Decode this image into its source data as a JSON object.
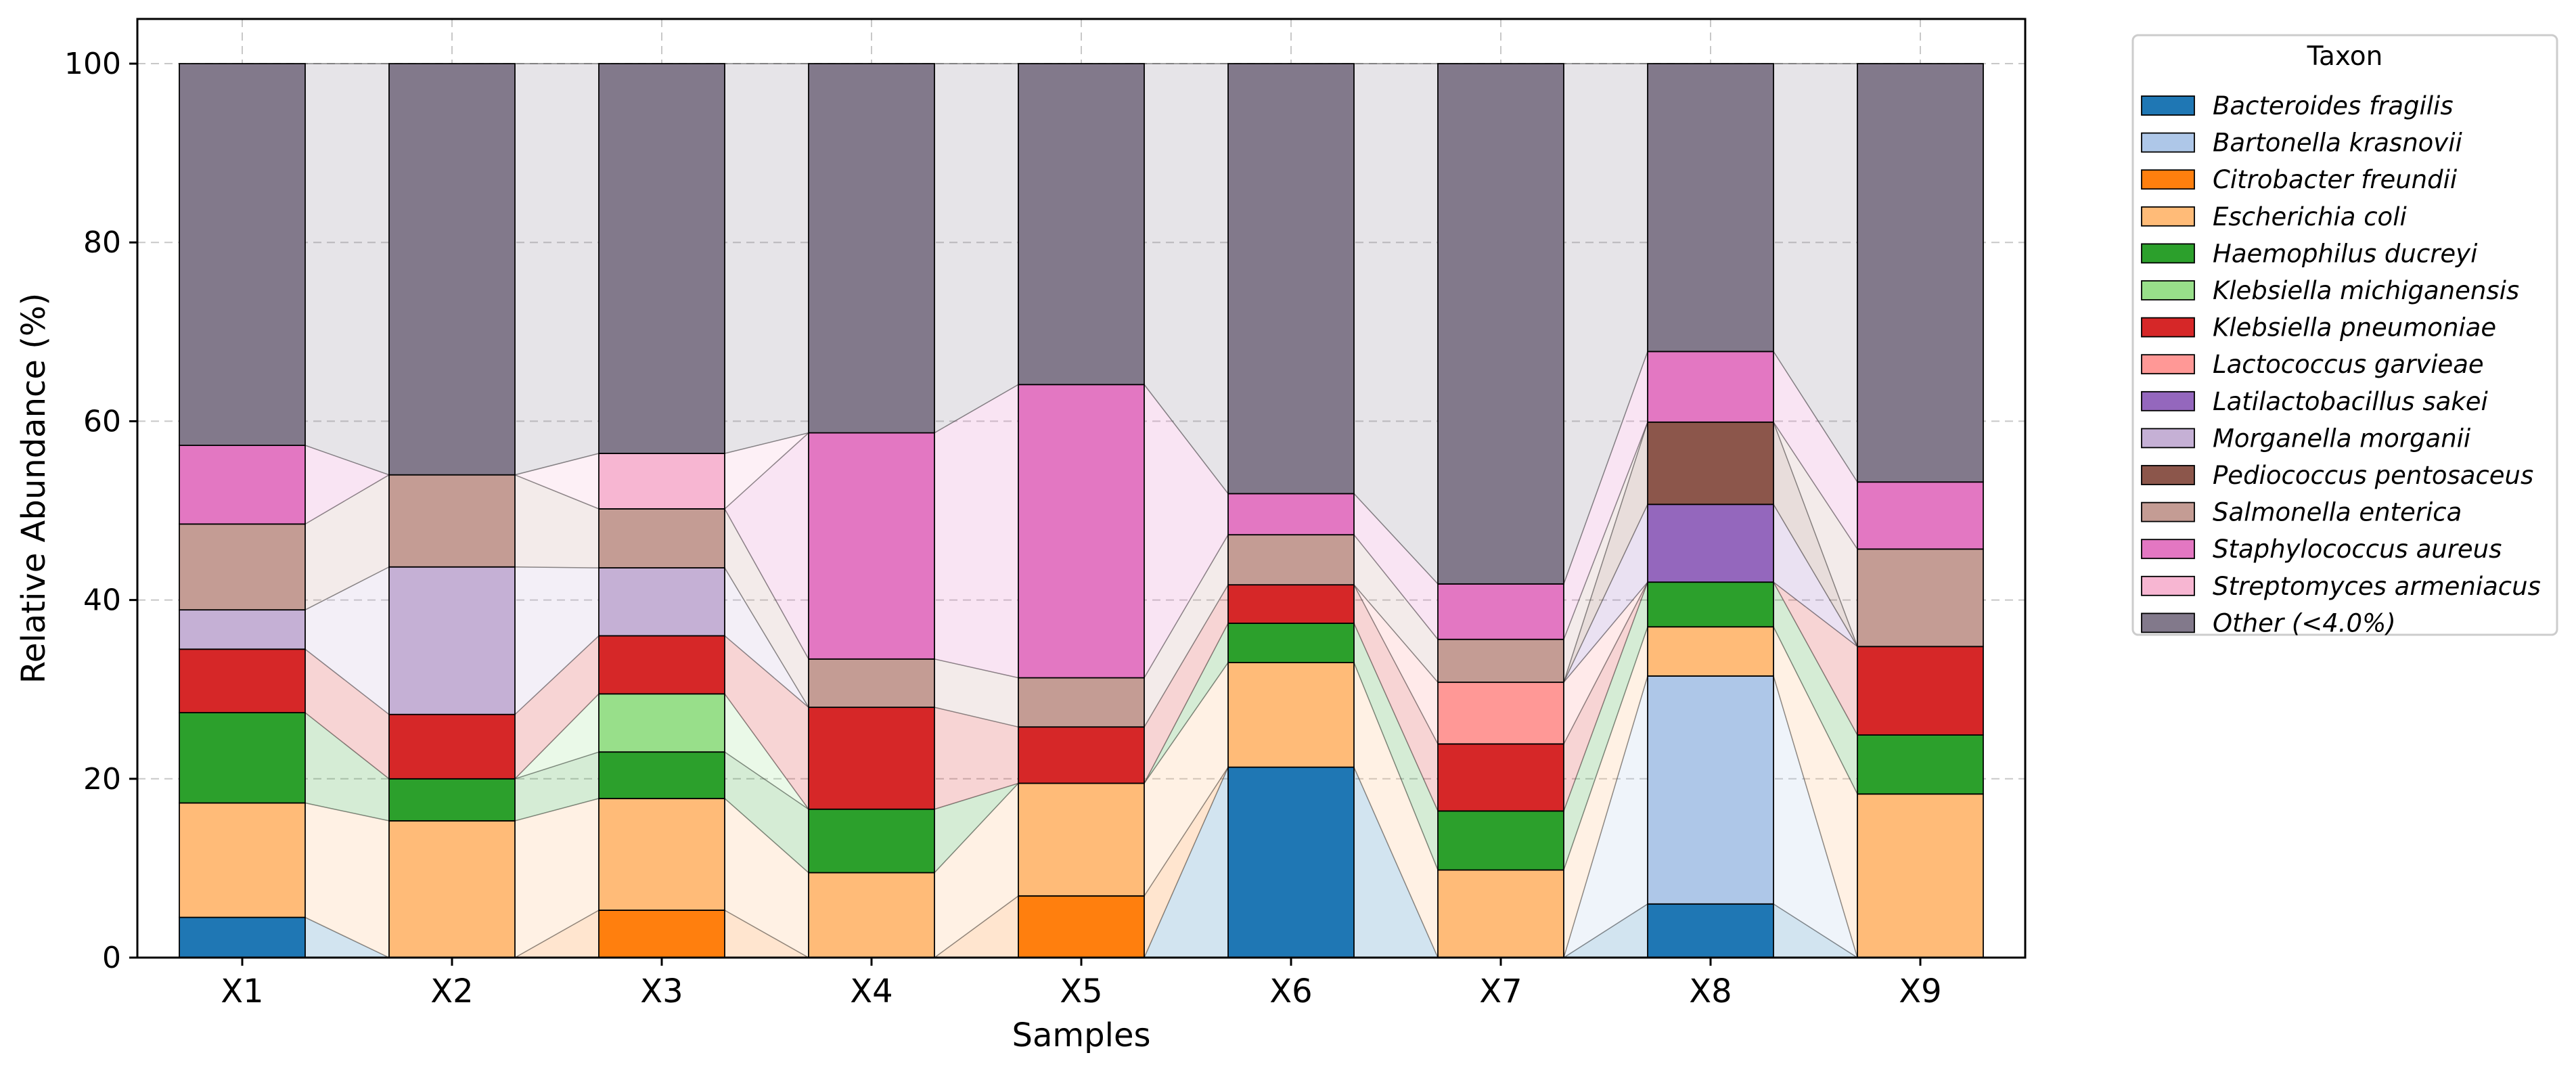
{
  "chart_data": {
    "type": "bar",
    "stacked": true,
    "xlabel": "Samples",
    "ylabel": "Relative Abundance (%)",
    "ylim": [
      0,
      105
    ],
    "yticks": [
      0,
      20,
      40,
      60,
      80,
      100
    ],
    "grid": true,
    "legend_title": "Taxon",
    "legend_position": "outside-right",
    "categories": [
      "X1",
      "X2",
      "X3",
      "X4",
      "X5",
      "X6",
      "X7",
      "X8",
      "X9"
    ],
    "series": [
      {
        "name": "Bacteroides fragilis",
        "color": "#1f77b4",
        "values": [
          4.5,
          0,
          0,
          0,
          0,
          21.3,
          0,
          6.0,
          0
        ]
      },
      {
        "name": "Bartonella krasnovii",
        "color": "#aec7e8",
        "values": [
          0,
          0,
          0,
          0,
          0,
          0,
          0,
          25.5,
          0
        ]
      },
      {
        "name": "Citrobacter freundii",
        "color": "#ff7f0e",
        "values": [
          0,
          0,
          5.3,
          0,
          6.9,
          0,
          0,
          0,
          0
        ]
      },
      {
        "name": "Escherichia coli",
        "color": "#ffbb78",
        "values": [
          12.8,
          15.3,
          12.5,
          9.5,
          12.6,
          11.7,
          9.8,
          5.5,
          18.3
        ]
      },
      {
        "name": "Haemophilus ducreyi",
        "color": "#2ca02c",
        "values": [
          10.1,
          4.7,
          5.2,
          7.1,
          0,
          4.4,
          6.6,
          5.0,
          6.6
        ]
      },
      {
        "name": "Klebsiella michiganensis",
        "color": "#98df8a",
        "values": [
          0,
          0,
          6.5,
          0,
          0,
          0,
          0,
          0,
          0
        ]
      },
      {
        "name": "Klebsiella pneumoniae",
        "color": "#d62728",
        "values": [
          7.1,
          7.2,
          6.5,
          11.4,
          6.3,
          4.3,
          7.5,
          0,
          9.9
        ]
      },
      {
        "name": "Lactococcus garvieae",
        "color": "#ff9896",
        "values": [
          0,
          0,
          0,
          0,
          0,
          0,
          6.9,
          0,
          0
        ]
      },
      {
        "name": "Latilactobacillus sakei",
        "color": "#9467bd",
        "values": [
          0,
          0,
          0,
          0,
          0,
          0,
          0,
          8.7,
          0
        ]
      },
      {
        "name": "Morganella morganii",
        "color": "#c5b0d5",
        "values": [
          4.4,
          16.5,
          7.6,
          0,
          0,
          0,
          0,
          0,
          0
        ]
      },
      {
        "name": "Pediococcus pentosaceus",
        "color": "#8c564b",
        "values": [
          0,
          0,
          0,
          0,
          0,
          0,
          0,
          9.2,
          0
        ]
      },
      {
        "name": "Salmonella enterica",
        "color": "#c49c94",
        "values": [
          9.6,
          10.3,
          6.6,
          5.4,
          5.5,
          5.6,
          4.8,
          0,
          10.9
        ]
      },
      {
        "name": "Staphylococcus aureus",
        "color": "#e377c2",
        "values": [
          8.8,
          0,
          0,
          25.3,
          32.8,
          4.6,
          6.2,
          7.9,
          7.5
        ]
      },
      {
        "name": "Streptomyces armeniacus",
        "color": "#f7b6d2",
        "values": [
          0,
          0,
          6.2,
          0,
          0,
          0,
          0,
          0,
          0
        ]
      },
      {
        "name": "Other (<4.0%)",
        "color": "#82798b",
        "values": [
          42.7,
          46.0,
          43.6,
          41.3,
          35.9,
          48.1,
          58.2,
          32.2,
          46.8
        ]
      }
    ]
  }
}
